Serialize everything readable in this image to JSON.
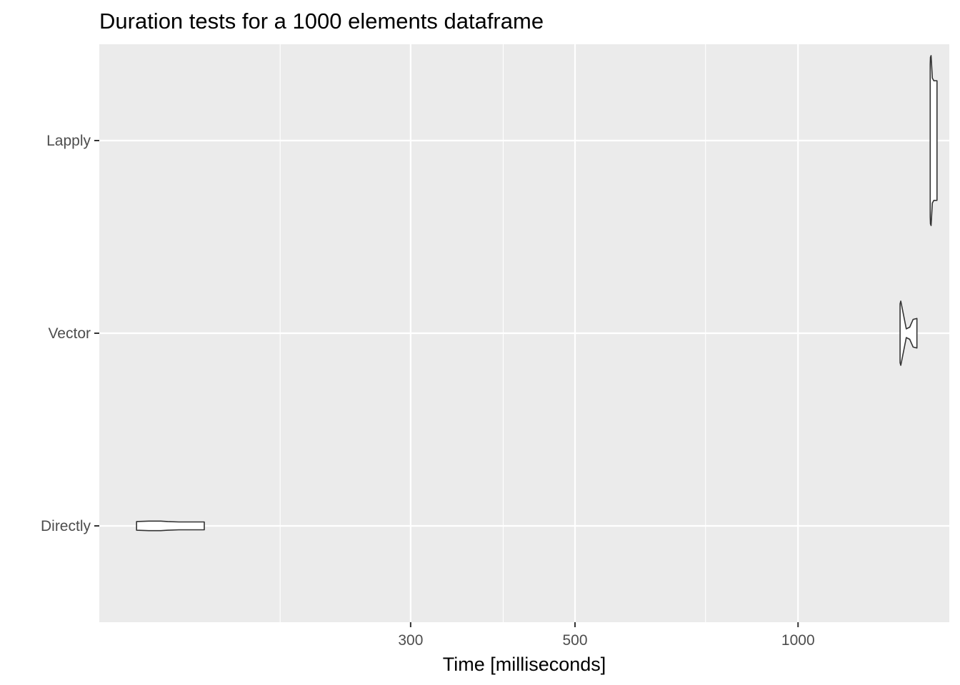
{
  "chart_data": {
    "type": "violin",
    "title": "Duration tests for a  1000  elements  dataframe",
    "xlabel": "Time [milliseconds]",
    "ylabel": "",
    "x_scale": "log10",
    "xlim": [
      114,
      1600
    ],
    "x_ticks": [
      300,
      500,
      1000
    ],
    "x_tick_labels": [
      "300",
      "500",
      "1000"
    ],
    "x_minor_grid": [
      200,
      400,
      750
    ],
    "categories": [
      "Lapply",
      "Vector",
      "Directly"
    ],
    "grid": true,
    "legend": "none",
    "colors": {
      "panel": "#ebebeb",
      "grid": "#ffffff",
      "outline": "#333333",
      "fill": "#ffffff"
    },
    "series": [
      {
        "category": "Lapply",
        "min": 1508,
        "max": 1540,
        "profile": [
          {
            "x": 1508,
            "w": 0.88
          },
          {
            "x": 1509,
            "w": 0.96
          },
          {
            "x": 1512,
            "w": 0.98
          },
          {
            "x": 1518,
            "w": 0.72
          },
          {
            "x": 1525,
            "w": 0.69
          },
          {
            "x": 1533,
            "w": 0.69
          },
          {
            "x": 1540,
            "w": 0.69
          }
        ]
      },
      {
        "category": "Vector",
        "min": 1373,
        "max": 1447,
        "profile": [
          {
            "x": 1373,
            "w": 0.34
          },
          {
            "x": 1376,
            "w": 0.37
          },
          {
            "x": 1385,
            "w": 0.25
          },
          {
            "x": 1400,
            "w": 0.05
          },
          {
            "x": 1415,
            "w": 0.07
          },
          {
            "x": 1430,
            "w": 0.16
          },
          {
            "x": 1447,
            "w": 0.17
          }
        ]
      },
      {
        "category": "Directly",
        "min": 128,
        "max": 158,
        "profile": [
          {
            "x": 128,
            "w": 0.05
          },
          {
            "x": 133,
            "w": 0.055
          },
          {
            "x": 138,
            "w": 0.055
          },
          {
            "x": 141,
            "w": 0.05
          },
          {
            "x": 146,
            "w": 0.045
          },
          {
            "x": 152,
            "w": 0.045
          },
          {
            "x": 158,
            "w": 0.045
          }
        ]
      }
    ]
  }
}
